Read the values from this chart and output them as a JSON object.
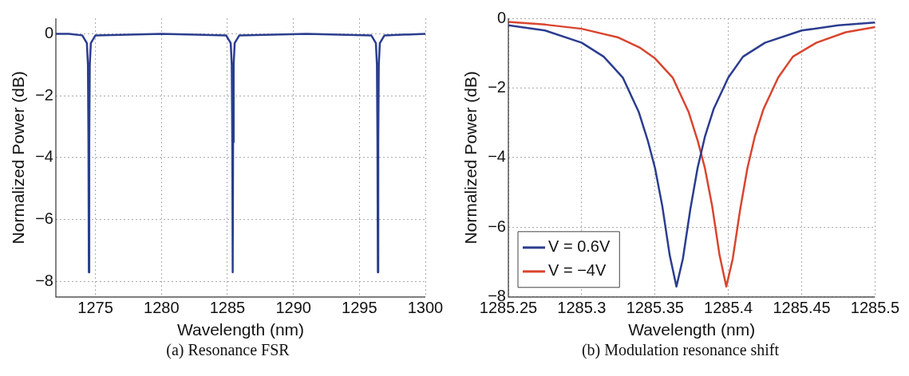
{
  "chart_data": [
    {
      "type": "line",
      "xlabel": "Wavelength (nm)",
      "ylabel": "Normalized Power (dB)",
      "annotations": [
        "(a) Resonance FSR"
      ],
      "xlim": [
        1272,
        1300
      ],
      "xticks": [
        1275,
        1280,
        1285,
        1290,
        1295,
        1300
      ],
      "ylim": [
        -8.5,
        0.5
      ],
      "yticks": [
        -8,
        -6,
        -4,
        -2,
        0
      ],
      "grid": true,
      "legend": false,
      "marker": "none",
      "line_style": "solid",
      "series": [
        {
          "color": "#2b3d8f",
          "x": [
            1272,
            1273,
            1274,
            1274.35,
            1274.43,
            1274.47,
            1274.5,
            1274.53,
            1274.57,
            1274.65,
            1275,
            1280,
            1284.9,
            1285.25,
            1285.33,
            1285.37,
            1285.4,
            1285.43,
            1285.47,
            1285.55,
            1285.9,
            1291,
            1295.9,
            1296.25,
            1296.33,
            1296.37,
            1296.4,
            1296.43,
            1296.47,
            1296.55,
            1296.9,
            1300
          ],
          "values": [
            0,
            0,
            -0.05,
            -0.3,
            -1,
            -3.5,
            -7.7,
            -3.5,
            -1,
            -0.3,
            -0.05,
            0,
            -0.05,
            -0.3,
            -1,
            -3.5,
            -7.7,
            -3.5,
            -1,
            -0.3,
            -0.05,
            0,
            -0.05,
            -0.3,
            -1,
            -3.5,
            -7.7,
            -3.5,
            -1,
            -0.3,
            -0.05,
            0
          ]
        }
      ]
    },
    {
      "type": "line",
      "xlabel": "Wavelength (nm)",
      "ylabel": "Normalized Power (dB)",
      "annotations": [
        "(b) Modulation resonance shift"
      ],
      "xlim": [
        1285.25,
        1285.5
      ],
      "xticks": [
        1285.25,
        1285.3,
        1285.35,
        1285.4,
        1285.45,
        1285.5
      ],
      "ylim": [
        -8,
        0
      ],
      "yticks": [
        -8,
        -6,
        -4,
        -2,
        0
      ],
      "grid": true,
      "legend": "bottom left",
      "marker": "none",
      "line_style": "solid",
      "series": [
        {
          "name": "V = 0.6V",
          "color": "#2b3d8f",
          "x": [
            1285.25,
            1285.275,
            1285.3,
            1285.315,
            1285.328,
            1285.339,
            1285.345,
            1285.35,
            1285.355,
            1285.36,
            1285.3646,
            1285.369,
            1285.374,
            1285.379,
            1285.384,
            1285.39,
            1285.4,
            1285.41,
            1285.425,
            1285.45,
            1285.475,
            1285.5
          ],
          "values": [
            -0.2,
            -0.35,
            -0.7,
            -1.1,
            -1.7,
            -2.7,
            -3.5,
            -4.3,
            -5.4,
            -6.8,
            -7.7,
            -6.9,
            -5.5,
            -4.3,
            -3.4,
            -2.6,
            -1.7,
            -1.1,
            -0.7,
            -0.35,
            -0.2,
            -0.12
          ]
        },
        {
          "name": "V = −4V",
          "color": "#d9452f",
          "x": [
            1285.25,
            1285.275,
            1285.3,
            1285.325,
            1285.34,
            1285.35,
            1285.362,
            1285.373,
            1285.379,
            1285.384,
            1285.389,
            1285.394,
            1285.3986,
            1285.403,
            1285.408,
            1285.413,
            1285.418,
            1285.424,
            1285.434,
            1285.444,
            1285.46,
            1285.48,
            1285.5
          ],
          "values": [
            -0.1,
            -0.18,
            -0.3,
            -0.55,
            -0.85,
            -1.15,
            -1.7,
            -2.7,
            -3.5,
            -4.3,
            -5.4,
            -6.8,
            -7.7,
            -6.9,
            -5.5,
            -4.3,
            -3.4,
            -2.6,
            -1.7,
            -1.1,
            -0.7,
            -0.4,
            -0.25
          ]
        }
      ]
    }
  ]
}
